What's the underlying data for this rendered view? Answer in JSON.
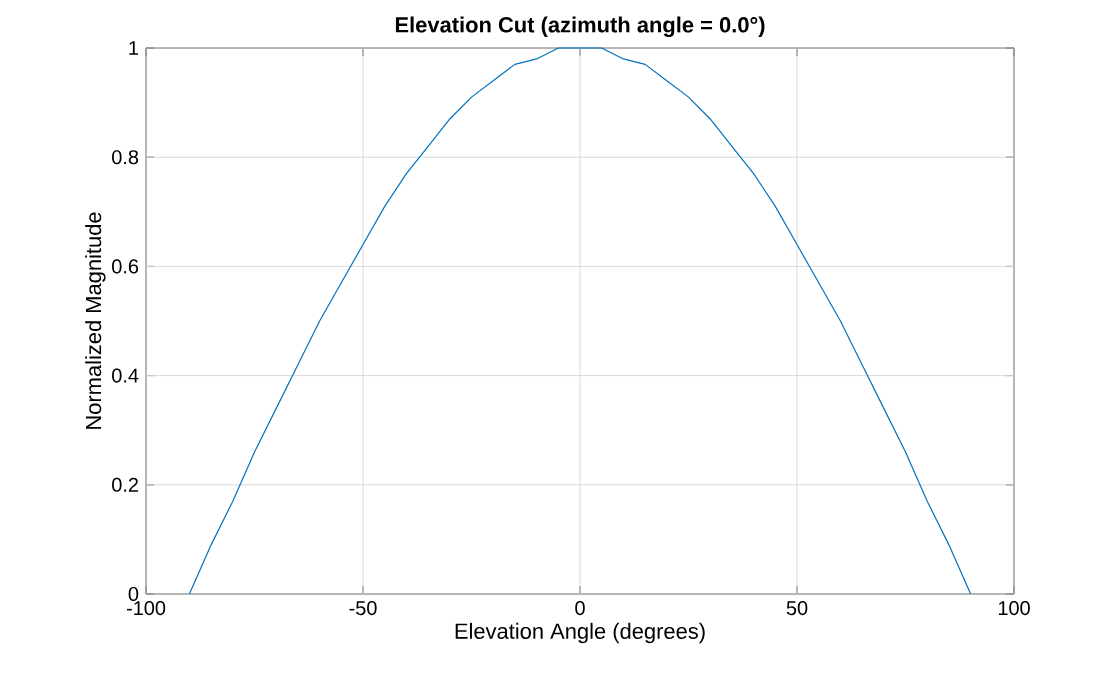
{
  "chart_data": {
    "type": "line",
    "title": "Elevation Cut (azimuth angle = 0.0°)",
    "xlabel": "Elevation Angle (degrees)",
    "ylabel": "Normalized Magnitude",
    "x": [
      -90,
      -85,
      -80,
      -75,
      -70,
      -65,
      -60,
      -55,
      -50,
      -45,
      -40,
      -35,
      -30,
      -25,
      -20,
      -15,
      -10,
      -5,
      0,
      5,
      10,
      15,
      20,
      25,
      30,
      35,
      40,
      45,
      50,
      55,
      60,
      65,
      70,
      75,
      80,
      85,
      90
    ],
    "series": [
      {
        "color": "#0072bd",
        "values": [
          0,
          0.09,
          0.17,
          0.26,
          0.34,
          0.42,
          0.5,
          0.57,
          0.64,
          0.71,
          0.77,
          0.82,
          0.87,
          0.91,
          0.94,
          0.97,
          0.98,
          1,
          1,
          1,
          0.98,
          0.97,
          0.94,
          0.91,
          0.87,
          0.82,
          0.77,
          0.71,
          0.64,
          0.57,
          0.5,
          0.42,
          0.34,
          0.26,
          0.17,
          0.09,
          0
        ]
      }
    ],
    "xlim": [
      -100,
      100
    ],
    "xticks": [
      -100,
      -50,
      0,
      50,
      100
    ],
    "ylim": [
      0,
      1
    ],
    "yticks": [
      0,
      0.2,
      0.4,
      0.6,
      0.8,
      1
    ],
    "grid": true
  }
}
